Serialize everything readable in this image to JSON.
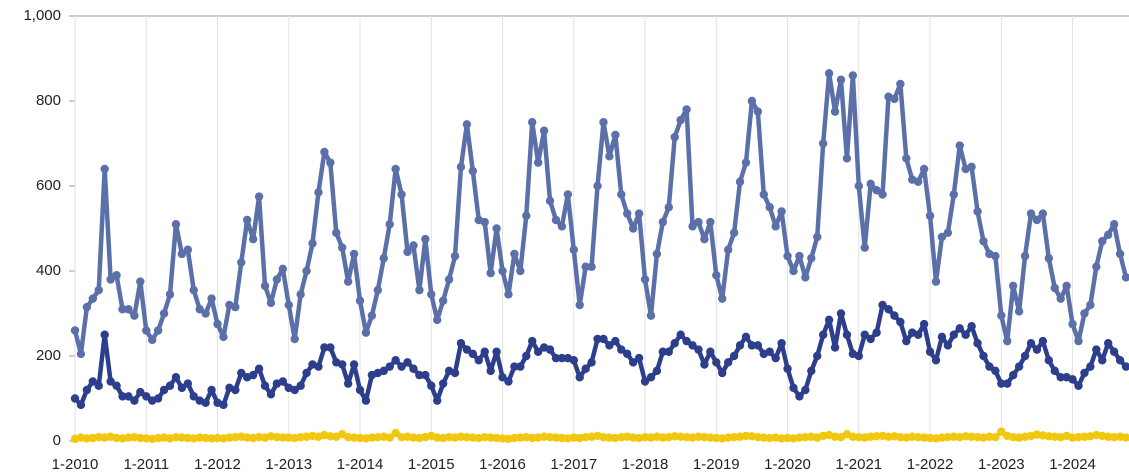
{
  "chart_data": {
    "type": "line",
    "categories": [
      "1-2010",
      null,
      null,
      null,
      null,
      null,
      null,
      null,
      null,
      null,
      null,
      null,
      "1-2011",
      null,
      null,
      null,
      null,
      null,
      null,
      null,
      null,
      null,
      null,
      null,
      "1-2012",
      null,
      null,
      null,
      null,
      null,
      null,
      null,
      null,
      null,
      null,
      null,
      "1-2013",
      null,
      null,
      null,
      null,
      null,
      null,
      null,
      null,
      null,
      null,
      null,
      "1-2014",
      null,
      null,
      null,
      null,
      null,
      null,
      null,
      null,
      null,
      null,
      null,
      "1-2015",
      null,
      null,
      null,
      null,
      null,
      null,
      null,
      null,
      null,
      null,
      null,
      "1-2016",
      null,
      null,
      null,
      null,
      null,
      null,
      null,
      null,
      null,
      null,
      null,
      "1-2017",
      null,
      null,
      null,
      null,
      null,
      null,
      null,
      null,
      null,
      null,
      null,
      "1-2018",
      null,
      null,
      null,
      null,
      null,
      null,
      null,
      null,
      null,
      null,
      null,
      "1-2019",
      null,
      null,
      null,
      null,
      null,
      null,
      null,
      null,
      null,
      null,
      null,
      "1-2020",
      null,
      null,
      null,
      null,
      null,
      null,
      null,
      null,
      null,
      null,
      null,
      "1-2021",
      null,
      null,
      null,
      null,
      null,
      null,
      null,
      null,
      null,
      null,
      null,
      "1-2022",
      null,
      null,
      null,
      null,
      null,
      null,
      null,
      null,
      null,
      null,
      null,
      "1-2023",
      null,
      null,
      null,
      null,
      null,
      null,
      null,
      null,
      null,
      null,
      null,
      "1-2024",
      null,
      null,
      null,
      null,
      null,
      null,
      null,
      null,
      null
    ],
    "series": [
      {
        "color": "#5b70a9",
        "values": [
          260,
          205,
          315,
          335,
          355,
          640,
          380,
          390,
          310,
          310,
          295,
          375,
          260,
          238,
          260,
          300,
          345,
          510,
          440,
          450,
          355,
          310,
          300,
          335,
          275,
          245,
          320,
          315,
          420,
          520,
          475,
          575,
          365,
          325,
          380,
          405,
          320,
          240,
          345,
          400,
          465,
          585,
          680,
          655,
          490,
          455,
          375,
          440,
          330,
          255,
          295,
          355,
          430,
          510,
          640,
          580,
          445,
          460,
          355,
          475,
          345,
          285,
          330,
          380,
          435,
          645,
          745,
          635,
          520,
          515,
          395,
          500,
          400,
          345,
          440,
          400,
          530,
          750,
          655,
          730,
          565,
          520,
          505,
          580,
          450,
          320,
          410,
          410,
          600,
          750,
          670,
          720,
          580,
          535,
          500,
          535,
          380,
          295,
          440,
          515,
          550,
          715,
          755,
          780,
          505,
          515,
          475,
          515,
          390,
          335,
          450,
          490,
          610,
          655,
          800,
          775,
          580,
          550,
          505,
          540,
          435,
          400,
          435,
          385,
          430,
          480,
          700,
          865,
          775,
          850,
          665,
          860,
          600,
          455,
          605,
          590,
          580,
          810,
          805,
          840,
          665,
          615,
          610,
          640,
          530,
          375,
          480,
          490,
          580,
          695,
          640,
          645,
          540,
          470,
          440,
          435,
          295,
          235,
          365,
          305,
          435,
          535,
          520,
          535,
          430,
          360,
          335,
          365,
          275,
          235,
          300,
          320,
          410,
          470,
          485,
          510,
          440,
          385
        ]
      },
      {
        "color": "#2c3e8c",
        "values": [
          100,
          85,
          120,
          140,
          130,
          250,
          140,
          130,
          105,
          105,
          95,
          115,
          105,
          95,
          100,
          120,
          130,
          150,
          125,
          135,
          105,
          95,
          90,
          120,
          90,
          85,
          125,
          120,
          160,
          150,
          155,
          170,
          130,
          110,
          135,
          140,
          125,
          120,
          130,
          160,
          180,
          175,
          220,
          220,
          185,
          180,
          135,
          180,
          120,
          95,
          155,
          160,
          165,
          175,
          190,
          175,
          185,
          170,
          155,
          155,
          130,
          95,
          135,
          165,
          160,
          230,
          215,
          205,
          190,
          210,
          165,
          210,
          150,
          140,
          175,
          175,
          200,
          235,
          210,
          220,
          215,
          195,
          195,
          195,
          190,
          150,
          170,
          185,
          240,
          240,
          225,
          235,
          215,
          205,
          185,
          195,
          140,
          150,
          165,
          210,
          210,
          230,
          250,
          235,
          225,
          215,
          180,
          210,
          185,
          160,
          185,
          200,
          225,
          245,
          225,
          225,
          205,
          210,
          195,
          230,
          170,
          125,
          105,
          120,
          165,
          200,
          250,
          285,
          220,
          300,
          250,
          205,
          200,
          250,
          240,
          255,
          320,
          310,
          295,
          280,
          235,
          255,
          250,
          275,
          210,
          190,
          245,
          225,
          250,
          265,
          250,
          270,
          230,
          200,
          175,
          165,
          135,
          135,
          155,
          175,
          200,
          230,
          215,
          235,
          190,
          165,
          150,
          150,
          145,
          130,
          160,
          175,
          215,
          190,
          230,
          210,
          190,
          175
        ]
      },
      {
        "color": "#f2c80f",
        "values": [
          5,
          8,
          6,
          7,
          9,
          8,
          10,
          7,
          6,
          8,
          9,
          7,
          6,
          5,
          7,
          8,
          6,
          9,
          8,
          7,
          6,
          8,
          7,
          6,
          7,
          6,
          8,
          9,
          10,
          8,
          7,
          9,
          8,
          11,
          9,
          8,
          8,
          7,
          9,
          10,
          12,
          10,
          14,
          11,
          10,
          16,
          9,
          8,
          7,
          6,
          8,
          9,
          10,
          8,
          19,
          9,
          10,
          8,
          7,
          9,
          12,
          8,
          7,
          9,
          8,
          10,
          9,
          8,
          7,
          9,
          8,
          7,
          6,
          5,
          7,
          8,
          9,
          7,
          8,
          10,
          9,
          8,
          7,
          6,
          8,
          7,
          9,
          10,
          12,
          9,
          8,
          7,
          9,
          10,
          8,
          7,
          9,
          8,
          10,
          8,
          9,
          11,
          10,
          9,
          8,
          10,
          9,
          8,
          7,
          6,
          8,
          9,
          10,
          12,
          11,
          9,
          8,
          7,
          8,
          6,
          7,
          6,
          8,
          9,
          10,
          8,
          12,
          14,
          10,
          9,
          16,
          10,
          9,
          8,
          10,
          11,
          12,
          10,
          11,
          9,
          8,
          10,
          9,
          8,
          7,
          6,
          8,
          9,
          10,
          9,
          11,
          10,
          9,
          8,
          10,
          9,
          22,
          12,
          9,
          8,
          10,
          12,
          15,
          13,
          11,
          10,
          9,
          12,
          8,
          9,
          10,
          11,
          14,
          12,
          10,
          9,
          10,
          8
        ]
      }
    ],
    "ylim": [
      0,
      1000
    ],
    "yticks": [
      0,
      200,
      400,
      600,
      800,
      {
        "value": 1000,
        "label": "1,000"
      }
    ],
    "grid": "x"
  }
}
